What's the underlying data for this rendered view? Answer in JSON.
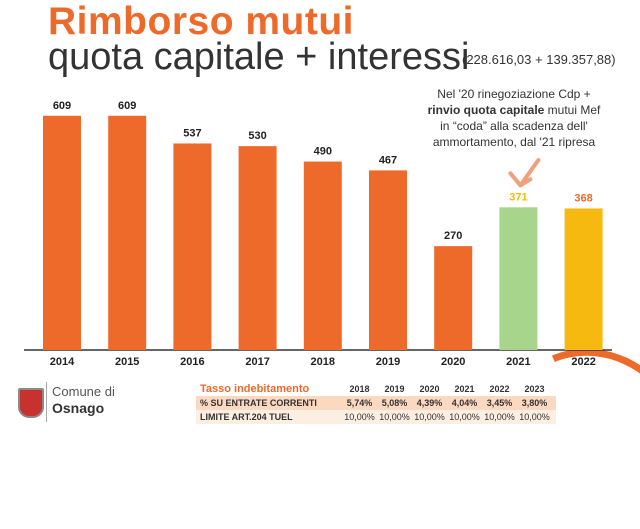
{
  "header": {
    "title_line1": "Rimborso mutui",
    "title_line2": "quota capitale + interessi",
    "subtitle": "(228.616,03 + 139.357,88)"
  },
  "annotation": {
    "line1": "Nel '20 rinegoziazione Cdp +",
    "line2_bold": "rinvio quota capitale",
    "line2_rest": " mutui Mef",
    "line3": "in “coda” alla scadenza dell'",
    "line4": "ammortamento, dal '21 ripresa"
  },
  "logo": {
    "comune_label": "Comune di",
    "town_name": "Osnago"
  },
  "chart_data": {
    "type": "bar",
    "categories": [
      "2014",
      "2015",
      "2016",
      "2017",
      "2018",
      "2019",
      "2020",
      "2021",
      "2022"
    ],
    "values": [
      609,
      609,
      537,
      530,
      490,
      467,
      270,
      371,
      368
    ],
    "bar_colors": [
      "#ee6a2a",
      "#ee6a2a",
      "#ee6a2a",
      "#ee6a2a",
      "#ee6a2a",
      "#ee6a2a",
      "#ee6a2a",
      "#a8d58c",
      "#f6b90f"
    ],
    "label_colors": [
      "#222222",
      "#222222",
      "#222222",
      "#222222",
      "#222222",
      "#222222",
      "#222222",
      "#f6b90f",
      "#ee6a2a"
    ],
    "ylim": [
      0,
      650
    ],
    "grid": false,
    "annotation_target": "2021"
  },
  "table": {
    "title": "Tasso indebitamento",
    "years": [
      "2018",
      "2019",
      "2020",
      "2021",
      "2022",
      "2023"
    ],
    "rows": [
      {
        "label": "% SU ENTRATE CORRENTI",
        "values": [
          "5,74%",
          "5,08%",
          "4,39%",
          "4,04%",
          "3,45%",
          "3,80%"
        ]
      },
      {
        "label": "LIMITE ART.204 TUEL",
        "values": [
          "10,00%",
          "10,00%",
          "10,00%",
          "10,00%",
          "10,00%",
          "10,00%"
        ]
      }
    ]
  },
  "colors": {
    "accent_orange": "#ee6a2a",
    "green_bar": "#a8d58c",
    "yellow_bar": "#f6b90f",
    "text_dark": "#333333"
  }
}
